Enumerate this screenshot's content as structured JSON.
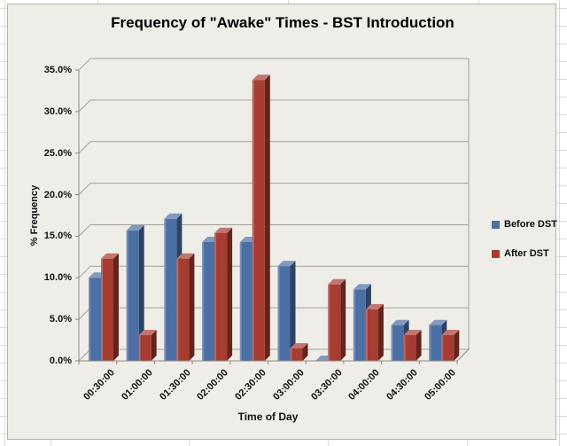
{
  "worksheet": {
    "background": "#ffffff",
    "gridline_color": "#dcdad5"
  },
  "chart": {
    "title": "Frequency of \"Awake\" Times - BST Introduction",
    "background": "#efede8",
    "border_color": "#b5b1a9",
    "gridline_color": "#a39f97",
    "axis_color": "#8e8a82",
    "y_axis_title": "% Frequency",
    "x_axis_title": "Time of Day",
    "y_ticks": [
      "0.0%",
      "5.0%",
      "10.0%",
      "15.0%",
      "20.0%",
      "25.0%",
      "30.0%",
      "35.0%"
    ]
  },
  "chart_data": {
    "type": "bar",
    "style": "3d-clustered-column",
    "title": "Frequency of \"Awake\" Times - BST Introduction",
    "xlabel": "Time of Day",
    "ylabel": "% Frequency",
    "ylim": [
      0,
      35
    ],
    "y_tick_step": 5,
    "y_tick_format": "0.0%",
    "grid": true,
    "legend_position": "right",
    "categories": [
      "00:30:00",
      "01:00:00",
      "01:30:00",
      "02:00:00",
      "02:30:00",
      "03:00:00",
      "03:30:00",
      "04:00:00",
      "04:30:00",
      "05:00:00"
    ],
    "series": [
      {
        "name": "Before DST",
        "color": "#4C6FA5",
        "values": [
          10.0,
          15.7,
          17.1,
          14.3,
          14.3,
          11.4,
          0.0,
          8.6,
          4.3,
          4.3
        ]
      },
      {
        "name": "After DST",
        "color": "#A63C32",
        "values": [
          12.3,
          3.1,
          12.3,
          15.4,
          33.8,
          1.5,
          9.2,
          6.2,
          3.1,
          3.1
        ]
      }
    ]
  }
}
